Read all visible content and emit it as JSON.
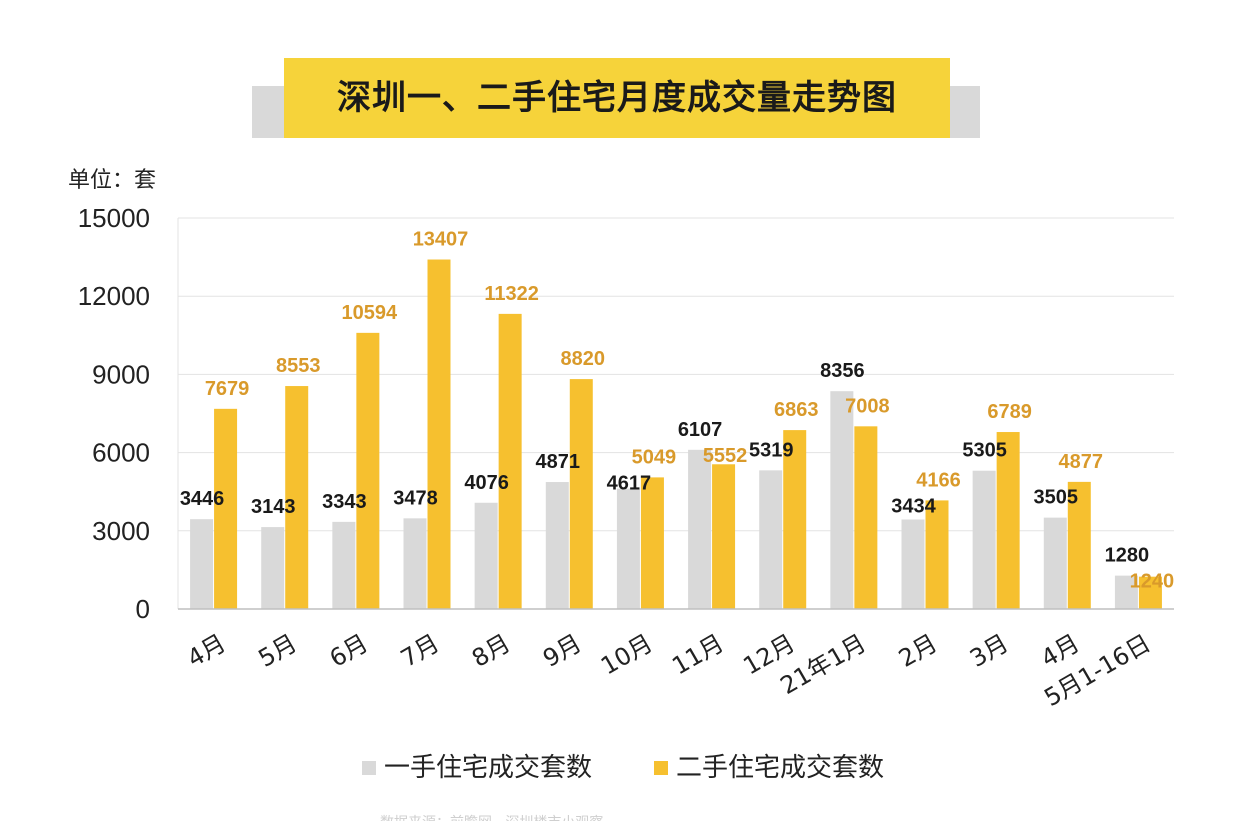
{
  "title": "深圳一、二手住宅月度成交量走势图",
  "unit_label": "单位：套",
  "footer_text": "数据来源：前瞻网 · 深圳楼市小观察",
  "colors": {
    "series1": "#d9d9d9",
    "series2": "#f6c02f",
    "label1": "#1a1a1a",
    "label2": "#d99a2b",
    "grid": "#e3e3e3"
  },
  "chart_data": {
    "type": "bar",
    "categories": [
      "4月",
      "5月",
      "6月",
      "7月",
      "8月",
      "9月",
      "10月",
      "11月",
      "12月",
      "21年1月",
      "2月",
      "3月",
      "4月",
      "5月1-16日"
    ],
    "series": [
      {
        "name": "一手住宅成交套数",
        "values": [
          3446,
          3143,
          3343,
          3478,
          4076,
          4871,
          4617,
          6107,
          5319,
          8356,
          3434,
          5305,
          3505,
          1280
        ]
      },
      {
        "name": "二手住宅成交套数",
        "values": [
          7679,
          8553,
          10594,
          13407,
          11322,
          8820,
          5049,
          5552,
          6863,
          7008,
          4166,
          6789,
          4877,
          1240
        ]
      }
    ],
    "yticks": [
      0,
      3000,
      6000,
      9000,
      12000,
      15000
    ],
    "ylim": [
      0,
      15000
    ],
    "legend_position": "bottom-center",
    "grid": true
  }
}
